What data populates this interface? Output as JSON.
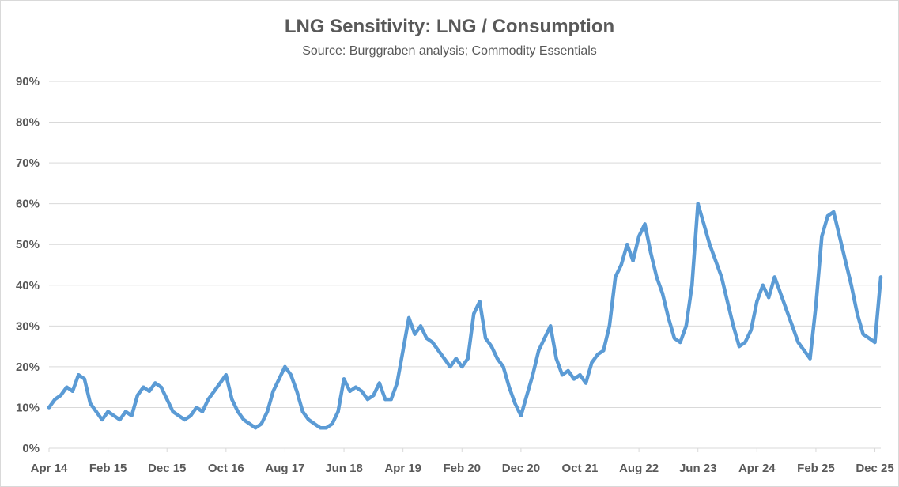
{
  "chart_data": {
    "type": "line",
    "title": "LNG Sensitivity: LNG / Consumption",
    "subtitle": "Source: Burggraben analysis; Commodity Essentials",
    "xlabel": "",
    "ylabel": "",
    "ylim": [
      0,
      0.9
    ],
    "yticks": [
      {
        "value": 0.0,
        "label": "0%"
      },
      {
        "value": 0.1,
        "label": "10%"
      },
      {
        "value": 0.2,
        "label": "20%"
      },
      {
        "value": 0.3,
        "label": "30%"
      },
      {
        "value": 0.4,
        "label": "40%"
      },
      {
        "value": 0.5,
        "label": "50%"
      },
      {
        "value": 0.6,
        "label": "60%"
      },
      {
        "value": 0.7,
        "label": "70%"
      },
      {
        "value": 0.8,
        "label": "80%"
      },
      {
        "value": 0.9,
        "label": "90%"
      }
    ],
    "x_range_months": [
      0,
      141
    ],
    "xticks": [
      {
        "month": 0,
        "label": "Apr 14"
      },
      {
        "month": 10,
        "label": "Feb 15"
      },
      {
        "month": 20,
        "label": "Dec 15"
      },
      {
        "month": 30,
        "label": "Oct 16"
      },
      {
        "month": 40,
        "label": "Aug 17"
      },
      {
        "month": 50,
        "label": "Jun 18"
      },
      {
        "month": 60,
        "label": "Apr 19"
      },
      {
        "month": 70,
        "label": "Feb 20"
      },
      {
        "month": 80,
        "label": "Dec 20"
      },
      {
        "month": 90,
        "label": "Oct 21"
      },
      {
        "month": 100,
        "label": "Aug 22"
      },
      {
        "month": 110,
        "label": "Jun 23"
      },
      {
        "month": 120,
        "label": "Apr 24"
      },
      {
        "month": 130,
        "label": "Feb 25"
      },
      {
        "month": 140,
        "label": "Dec 25"
      }
    ],
    "grid": true,
    "legend": "none",
    "color": "#5b9bd5",
    "series": [
      {
        "name": "LNG / Consumption",
        "x_unit": "months since Apr 2014",
        "points": [
          [
            0,
            0.1
          ],
          [
            1,
            0.12
          ],
          [
            2,
            0.13
          ],
          [
            3,
            0.15
          ],
          [
            4,
            0.14
          ],
          [
            5,
            0.18
          ],
          [
            6,
            0.17
          ],
          [
            7,
            0.11
          ],
          [
            8,
            0.09
          ],
          [
            9,
            0.07
          ],
          [
            10,
            0.09
          ],
          [
            11,
            0.08
          ],
          [
            12,
            0.07
          ],
          [
            13,
            0.09
          ],
          [
            14,
            0.08
          ],
          [
            15,
            0.13
          ],
          [
            16,
            0.15
          ],
          [
            17,
            0.14
          ],
          [
            18,
            0.16
          ],
          [
            19,
            0.15
          ],
          [
            20,
            0.12
          ],
          [
            21,
            0.09
          ],
          [
            22,
            0.08
          ],
          [
            23,
            0.07
          ],
          [
            24,
            0.08
          ],
          [
            25,
            0.1
          ],
          [
            26,
            0.09
          ],
          [
            27,
            0.12
          ],
          [
            28,
            0.14
          ],
          [
            29,
            0.16
          ],
          [
            30,
            0.18
          ],
          [
            31,
            0.12
          ],
          [
            32,
            0.09
          ],
          [
            33,
            0.07
          ],
          [
            34,
            0.06
          ],
          [
            35,
            0.05
          ],
          [
            36,
            0.06
          ],
          [
            37,
            0.09
          ],
          [
            38,
            0.14
          ],
          [
            39,
            0.17
          ],
          [
            40,
            0.2
          ],
          [
            41,
            0.18
          ],
          [
            42,
            0.14
          ],
          [
            43,
            0.09
          ],
          [
            44,
            0.07
          ],
          [
            45,
            0.06
          ],
          [
            46,
            0.05
          ],
          [
            47,
            0.05
          ],
          [
            48,
            0.06
          ],
          [
            49,
            0.09
          ],
          [
            50,
            0.17
          ],
          [
            51,
            0.14
          ],
          [
            52,
            0.15
          ],
          [
            53,
            0.14
          ],
          [
            54,
            0.12
          ],
          [
            55,
            0.13
          ],
          [
            56,
            0.16
          ],
          [
            57,
            0.12
          ],
          [
            58,
            0.12
          ],
          [
            59,
            0.16
          ],
          [
            60,
            0.24
          ],
          [
            61,
            0.32
          ],
          [
            62,
            0.28
          ],
          [
            63,
            0.3
          ],
          [
            64,
            0.27
          ],
          [
            65,
            0.26
          ],
          [
            66,
            0.24
          ],
          [
            67,
            0.22
          ],
          [
            68,
            0.2
          ],
          [
            69,
            0.22
          ],
          [
            70,
            0.2
          ],
          [
            71,
            0.22
          ],
          [
            72,
            0.33
          ],
          [
            73,
            0.36
          ],
          [
            74,
            0.27
          ],
          [
            75,
            0.25
          ],
          [
            76,
            0.22
          ],
          [
            77,
            0.2
          ],
          [
            78,
            0.15
          ],
          [
            79,
            0.11
          ],
          [
            80,
            0.08
          ],
          [
            81,
            0.13
          ],
          [
            82,
            0.18
          ],
          [
            83,
            0.24
          ],
          [
            84,
            0.27
          ],
          [
            85,
            0.3
          ],
          [
            86,
            0.22
          ],
          [
            87,
            0.18
          ],
          [
            88,
            0.19
          ],
          [
            89,
            0.17
          ],
          [
            90,
            0.18
          ],
          [
            91,
            0.16
          ],
          [
            92,
            0.21
          ],
          [
            93,
            0.23
          ],
          [
            94,
            0.24
          ],
          [
            95,
            0.3
          ],
          [
            96,
            0.42
          ],
          [
            97,
            0.45
          ],
          [
            98,
            0.5
          ],
          [
            99,
            0.46
          ],
          [
            100,
            0.52
          ],
          [
            101,
            0.55
          ],
          [
            102,
            0.48
          ],
          [
            103,
            0.42
          ],
          [
            104,
            0.38
          ],
          [
            105,
            0.32
          ],
          [
            106,
            0.27
          ],
          [
            107,
            0.26
          ],
          [
            108,
            0.3
          ],
          [
            109,
            0.4
          ],
          [
            110,
            0.6
          ],
          [
            111,
            0.55
          ],
          [
            112,
            0.5
          ],
          [
            113,
            0.46
          ],
          [
            114,
            0.42
          ],
          [
            115,
            0.36
          ],
          [
            116,
            0.3
          ],
          [
            117,
            0.25
          ],
          [
            118,
            0.26
          ],
          [
            119,
            0.29
          ],
          [
            120,
            0.36
          ],
          [
            121,
            0.4
          ],
          [
            122,
            0.37
          ],
          [
            123,
            0.42
          ],
          [
            124,
            0.38
          ],
          [
            125,
            0.34
          ],
          [
            126,
            0.3
          ],
          [
            127,
            0.26
          ],
          [
            128,
            0.24
          ],
          [
            129,
            0.22
          ],
          [
            130,
            0.35
          ],
          [
            131,
            0.52
          ],
          [
            132,
            0.57
          ],
          [
            133,
            0.58
          ],
          [
            134,
            0.52
          ],
          [
            135,
            0.46
          ],
          [
            136,
            0.4
          ],
          [
            137,
            0.33
          ],
          [
            138,
            0.28
          ],
          [
            139,
            0.27
          ],
          [
            140,
            0.26
          ],
          [
            141,
            0.42
          ]
        ]
      }
    ]
  }
}
